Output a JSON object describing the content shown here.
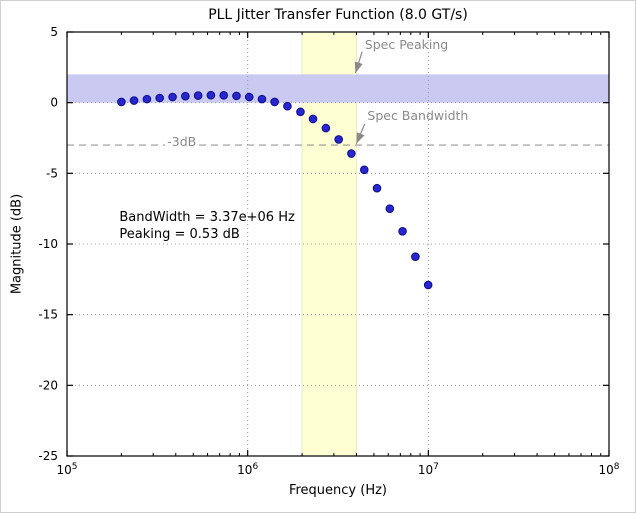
{
  "chart_data": {
    "type": "scatter",
    "title": "PLL Jitter Transfer Function (8.0 GT/s)",
    "xlabel": "Frequency (Hz)",
    "ylabel": "Magnitude (dB)",
    "xscale": "log",
    "xlim": [
      100000,
      100000000
    ],
    "ylim": [
      -25,
      5
    ],
    "x_tick_exponents": [
      5,
      6,
      7,
      8
    ],
    "y_ticks": [
      5,
      0,
      -5,
      -10,
      -15,
      -20,
      -25
    ],
    "grid": "dotted",
    "legend": "none",
    "marker": {
      "color": "#2727cd",
      "edge": "#0b0b8f"
    },
    "x": [
      200000,
      235000,
      277000,
      326000,
      384000,
      452000,
      532000,
      626000,
      737000,
      867000,
      1020000,
      1200000,
      1410000,
      1660000,
      1960000,
      2300000,
      2710000,
      3190000,
      3750000,
      4420000,
      5200000,
      6120000,
      7200000,
      8480000,
      9980000
    ],
    "y": [
      0.05,
      0.15,
      0.25,
      0.33,
      0.4,
      0.46,
      0.5,
      0.53,
      0.52,
      0.48,
      0.4,
      0.25,
      0.05,
      -0.25,
      -0.65,
      -1.15,
      -1.8,
      -2.6,
      -3.6,
      -4.75,
      -6.05,
      -7.5,
      -9.1,
      -10.9,
      -12.9
    ],
    "bands": {
      "spec_peaking": {
        "axis": "y",
        "from": 0,
        "to": 2,
        "color": "#c9c9f2"
      },
      "spec_bandwidth": {
        "axis": "x",
        "from": 2000000,
        "to": 4000000,
        "color": "#ffffd4",
        "edge": "#ececbb"
      }
    },
    "reference_line": {
      "y": -3,
      "style": "dashed",
      "color": "#999999"
    },
    "annotations": {
      "spec_peaking": {
        "text": "Spec Peaking",
        "x": 4450000,
        "y": 4.65,
        "arrow": {
          "x1": 4300000,
          "y1": 3.6,
          "x2": 3950000,
          "y2": 2.1
        },
        "color": "#8a8a8a"
      },
      "spec_bandwidth": {
        "text": "Spec Bandwidth",
        "x": 4600000,
        "y": -0.4,
        "arrow": {
          "x1": 4450000,
          "y1": -1.5,
          "x2": 4000000,
          "y2": -2.9
        },
        "color": "#8a8a8a"
      },
      "ref_label": {
        "text": "-3dB",
        "x": 350000,
        "y": -2.2,
        "color": "#8a8a8a"
      },
      "info_line1": "BandWidth = 3.37e+06 Hz",
      "info_line2": "Peaking = 0.53 dB",
      "info_pos": {
        "x": 195000,
        "y": -7.5
      }
    }
  }
}
